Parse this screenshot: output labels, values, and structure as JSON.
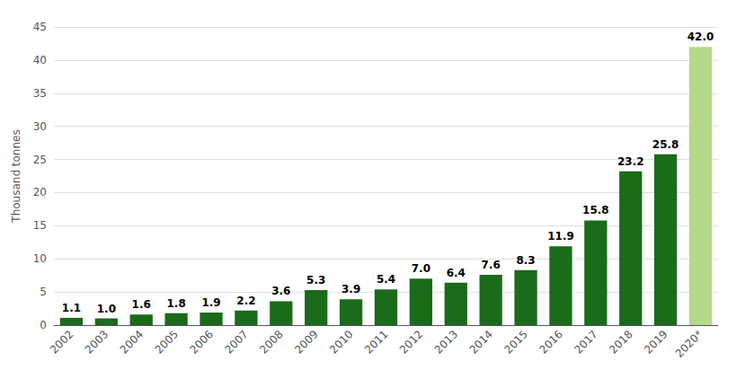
{
  "chart_data": {
    "type": "bar",
    "categories": [
      "2002",
      "2003",
      "2004",
      "2005",
      "2006",
      "2007",
      "2008",
      "2009",
      "2010",
      "2011",
      "2012",
      "2013",
      "2014",
      "2015",
      "2016",
      "2017",
      "2018",
      "2019",
      "2020*"
    ],
    "values": [
      1.1,
      1.0,
      1.6,
      1.8,
      1.9,
      2.2,
      3.6,
      5.3,
      3.9,
      5.4,
      7.0,
      6.4,
      7.6,
      8.3,
      11.9,
      15.8,
      23.2,
      25.8,
      42.0
    ],
    "value_labels": [
      "1.1",
      "1.0",
      "1.6",
      "1.8",
      "1.9",
      "2.2",
      "3.6",
      "5.3",
      "3.9",
      "5.4",
      "7.0",
      "6.4",
      "7.6",
      "8.3",
      "11.9",
      "15.8",
      "23.2",
      "25.8",
      "42.0"
    ],
    "colors": [
      "#1a6b1a",
      "#1a6b1a",
      "#1a6b1a",
      "#1a6b1a",
      "#1a6b1a",
      "#1a6b1a",
      "#1a6b1a",
      "#1a6b1a",
      "#1a6b1a",
      "#1a6b1a",
      "#1a6b1a",
      "#1a6b1a",
      "#1a6b1a",
      "#1a6b1a",
      "#1a6b1a",
      "#1a6b1a",
      "#1a6b1a",
      "#1a6b1a",
      "#b5d98a"
    ],
    "ylabel": "Thousand tonnes",
    "ylim": [
      0,
      45
    ],
    "yticks": [
      0,
      5,
      10,
      15,
      20,
      25,
      30,
      35,
      40,
      45
    ],
    "grid": true,
    "data_labels": true
  }
}
